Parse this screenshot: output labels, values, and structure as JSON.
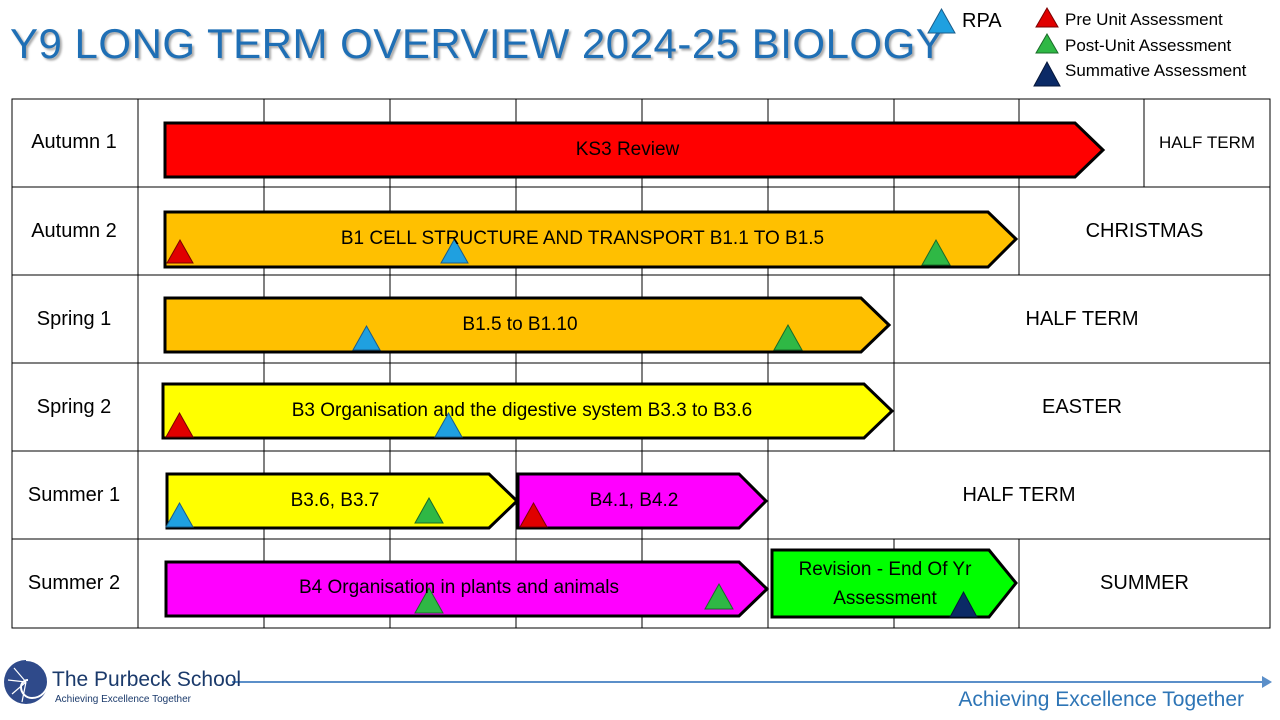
{
  "title": "Y9 LONG TERM OVERVIEW 2024-25 BIOLOGY",
  "legend": {
    "rpa": "RPA",
    "pre": "Pre Unit Assessment",
    "post": "Post-Unit Assessment",
    "summative": "Summative Assessment"
  },
  "colors": {
    "rpa": "#1fa0e0",
    "pre": "#e00000",
    "post": "#2fb845",
    "summative": "#0b2a66",
    "red_bar": "#ff0000",
    "orange_bar": "#ffc000",
    "yellow_bar": "#ffff00",
    "magenta_bar": "#ff00ff",
    "green_bar": "#00ff00"
  },
  "rows": [
    {
      "label": "Autumn 1",
      "bars": [
        {
          "text": "KS3 Review",
          "color": "red_bar"
        }
      ],
      "break": "HALF TERM"
    },
    {
      "label": "Autumn 2",
      "bars": [
        {
          "text": "B1 CELL STRUCTURE AND TRANSPORT B1.1 TO B1.5",
          "color": "orange_bar"
        }
      ],
      "break": "CHRISTMAS"
    },
    {
      "label": "Spring 1",
      "bars": [
        {
          "text": "B1.5 to B1.10",
          "color": "orange_bar"
        }
      ],
      "break": "HALF TERM"
    },
    {
      "label": "Spring 2",
      "bars": [
        {
          "text": "B3 Organisation and the digestive system B3.3 to B3.6",
          "color": "yellow_bar"
        }
      ],
      "break": "EASTER"
    },
    {
      "label": "Summer 1",
      "bars": [
        {
          "text": "B3.6, B3.7",
          "color": "yellow_bar"
        },
        {
          "text": "B4.1, B4.2",
          "color": "magenta_bar"
        }
      ],
      "break": "HALF TERM"
    },
    {
      "label": "Summer 2",
      "bars": [
        {
          "text": "B4 Organisation in plants and animals",
          "color": "magenta_bar"
        },
        {
          "text": "Revision - End Of Yr Assessment",
          "color": "green_bar"
        }
      ],
      "break": "SUMMER"
    }
  ],
  "footer": {
    "school": "The Purbeck School",
    "tagline": "Achieving Excellence Together",
    "motto": "Achieving Excellence Together"
  }
}
